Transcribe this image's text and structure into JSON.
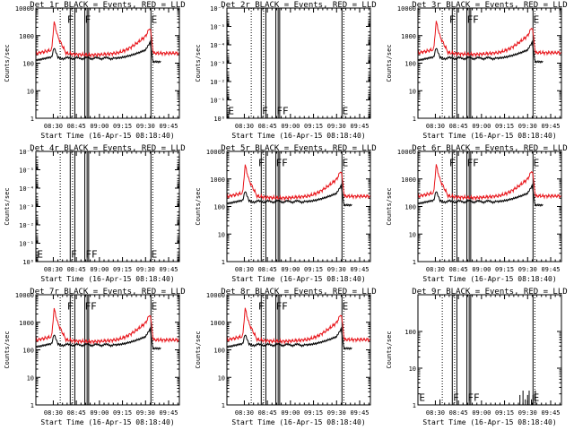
{
  "colors": {
    "events": "#000000",
    "lld": "#e8141a",
    "axis": "#000000"
  },
  "chart_data": [
    {
      "type": "line",
      "title": "Det 1r BLACK = Events, RED = LLD",
      "ylabel": "Counts/sec",
      "xlabel": "Start Time (16-Apr-15 08:18:40)",
      "yscale": "log",
      "ylim": [
        1,
        10000
      ],
      "yticks": [
        1,
        10,
        100,
        1000,
        10000
      ],
      "ytick_labels": [
        "1",
        "10",
        "100",
        "1000",
        "10000"
      ],
      "xticks": [
        "08:30",
        "08:45",
        "09:00",
        "09:15",
        "09:30",
        "09:45"
      ],
      "has_data": true,
      "markers": [
        "F",
        "F",
        "E"
      ],
      "series": [
        {
          "name": "Events",
          "color": "black"
        },
        {
          "name": "LLD",
          "color": "red"
        }
      ]
    },
    {
      "type": "line",
      "title": "Det 2r BLACK = Events, RED = LLD",
      "ylabel": "Counts/sec",
      "xlabel": "Start Time (16-Apr-15 08:18:40)",
      "yscale": "log",
      "ylim": [
        1,
        1e-06
      ],
      "yticks": [
        1e-06,
        1e-05,
        0.0001,
        0.001,
        0.01,
        0.1,
        1
      ],
      "ytick_labels": [
        "10⁻⁶",
        "10⁻⁵",
        "10⁻⁴",
        "10⁻³",
        "10⁻²",
        "10⁻¹",
        "10⁰"
      ],
      "xticks": [
        "08:30",
        "08:45",
        "09:00",
        "09:15",
        "09:30",
        "09:45"
      ],
      "has_data": false,
      "markers": [
        "E",
        "F",
        "FF",
        "E"
      ]
    },
    {
      "type": "line",
      "title": "Det 3r BLACK = Events, RED = LLD",
      "ylabel": "Counts/sec",
      "xlabel": "Start Time (16-Apr-15 08:18:40)",
      "yscale": "log",
      "ylim": [
        1,
        10000
      ],
      "yticks": [
        1,
        10,
        100,
        1000,
        10000
      ],
      "ytick_labels": [
        "1",
        "10",
        "100",
        "1000",
        "10000"
      ],
      "xticks": [
        "08:30",
        "08:45",
        "09:00",
        "09:15",
        "09:30",
        "09:45"
      ],
      "has_data": true,
      "markers": [
        "F",
        "FF",
        "E"
      ]
    },
    {
      "type": "line",
      "title": "Det 4r BLACK = Events, RED = LLD",
      "ylabel": "Counts/sec",
      "xlabel": "Start Time (16-Apr-15 08:18:40)",
      "yscale": "log",
      "ylim": [
        1,
        1e-06
      ],
      "yticks": [
        1e-06,
        1e-05,
        0.0001,
        0.001,
        0.01,
        0.1,
        1
      ],
      "ytick_labels": [
        "10⁻⁶",
        "10⁻⁵",
        "10⁻⁴",
        "10⁻³",
        "10⁻²",
        "10⁻¹",
        "10⁰"
      ],
      "xticks": [
        "08:30",
        "08:45",
        "09:00",
        "09:15",
        "09:30",
        "09:45"
      ],
      "has_data": false,
      "markers": [
        "E",
        "F",
        "FF",
        "E"
      ]
    },
    {
      "type": "line",
      "title": "Det 5r BLACK = Events, RED = LLD",
      "ylabel": "Counts/sec",
      "xlabel": "Start Time (16-Apr-15 08:18:40)",
      "yscale": "log",
      "ylim": [
        1,
        10000
      ],
      "yticks": [
        1,
        10,
        100,
        1000,
        10000
      ],
      "ytick_labels": [
        "1",
        "10",
        "100",
        "1000",
        "10000"
      ],
      "xticks": [
        "08:30",
        "08:45",
        "09:00",
        "09:15",
        "09:30",
        "09:45"
      ],
      "has_data": true,
      "markers": [
        "F",
        "FF",
        "E"
      ]
    },
    {
      "type": "line",
      "title": "Det 6r BLACK = Events, RED = LLD",
      "ylabel": "Counts/sec",
      "xlabel": "Start Time (16-Apr-15 08:18:40)",
      "yscale": "log",
      "ylim": [
        1,
        10000
      ],
      "yticks": [
        1,
        10,
        100,
        1000,
        10000
      ],
      "ytick_labels": [
        "1",
        "10",
        "100",
        "1000",
        "10000"
      ],
      "xticks": [
        "08:30",
        "08:45",
        "09:00",
        "09:15",
        "09:30",
        "09:45"
      ],
      "has_data": true,
      "markers": [
        "F",
        "FF",
        "E"
      ]
    },
    {
      "type": "line",
      "title": "Det 7r BLACK = Events, RED = LLD",
      "ylabel": "Counts/sec",
      "xlabel": "Start Time (16-Apr-15 08:18:40)",
      "yscale": "log",
      "ylim": [
        1,
        10000
      ],
      "yticks": [
        1,
        10,
        100,
        1000,
        10000
      ],
      "ytick_labels": [
        "1",
        "10",
        "100",
        "1000",
        "10000"
      ],
      "xticks": [
        "08:30",
        "08:45",
        "09:00",
        "09:15",
        "09:30",
        "09:45"
      ],
      "has_data": true,
      "markers": [
        "F",
        "FF",
        "E"
      ]
    },
    {
      "type": "line",
      "title": "Det 8r BLACK = Events, RED = LLD",
      "ylabel": "Counts/sec",
      "xlabel": "Start Time (16-Apr-15 08:18:40)",
      "yscale": "log",
      "ylim": [
        1,
        10000
      ],
      "yticks": [
        1,
        10,
        100,
        1000,
        10000
      ],
      "ytick_labels": [
        "1",
        "10",
        "100",
        "1000",
        "10000"
      ],
      "xticks": [
        "08:30",
        "08:45",
        "09:00",
        "09:15",
        "09:30",
        "09:45"
      ],
      "has_data": true,
      "markers": [
        "F",
        "FF",
        "E"
      ]
    },
    {
      "type": "line",
      "title": "Det 9r BLACK = Events, RED = LLD",
      "ylabel": "Counts/sec",
      "xlabel": "Start Time (16-Apr-15 08:18:40)",
      "yscale": "log",
      "ylim": [
        1,
        1000
      ],
      "yticks": [
        1,
        10,
        100
      ],
      "ytick_labels": [
        "1",
        "10",
        "100"
      ],
      "xticks": [
        "08:30",
        "08:45",
        "09:00",
        "09:15",
        "09:30",
        "09:45"
      ],
      "has_data": "sparse",
      "markers": [
        "E",
        "F",
        "FF",
        "E"
      ]
    }
  ]
}
